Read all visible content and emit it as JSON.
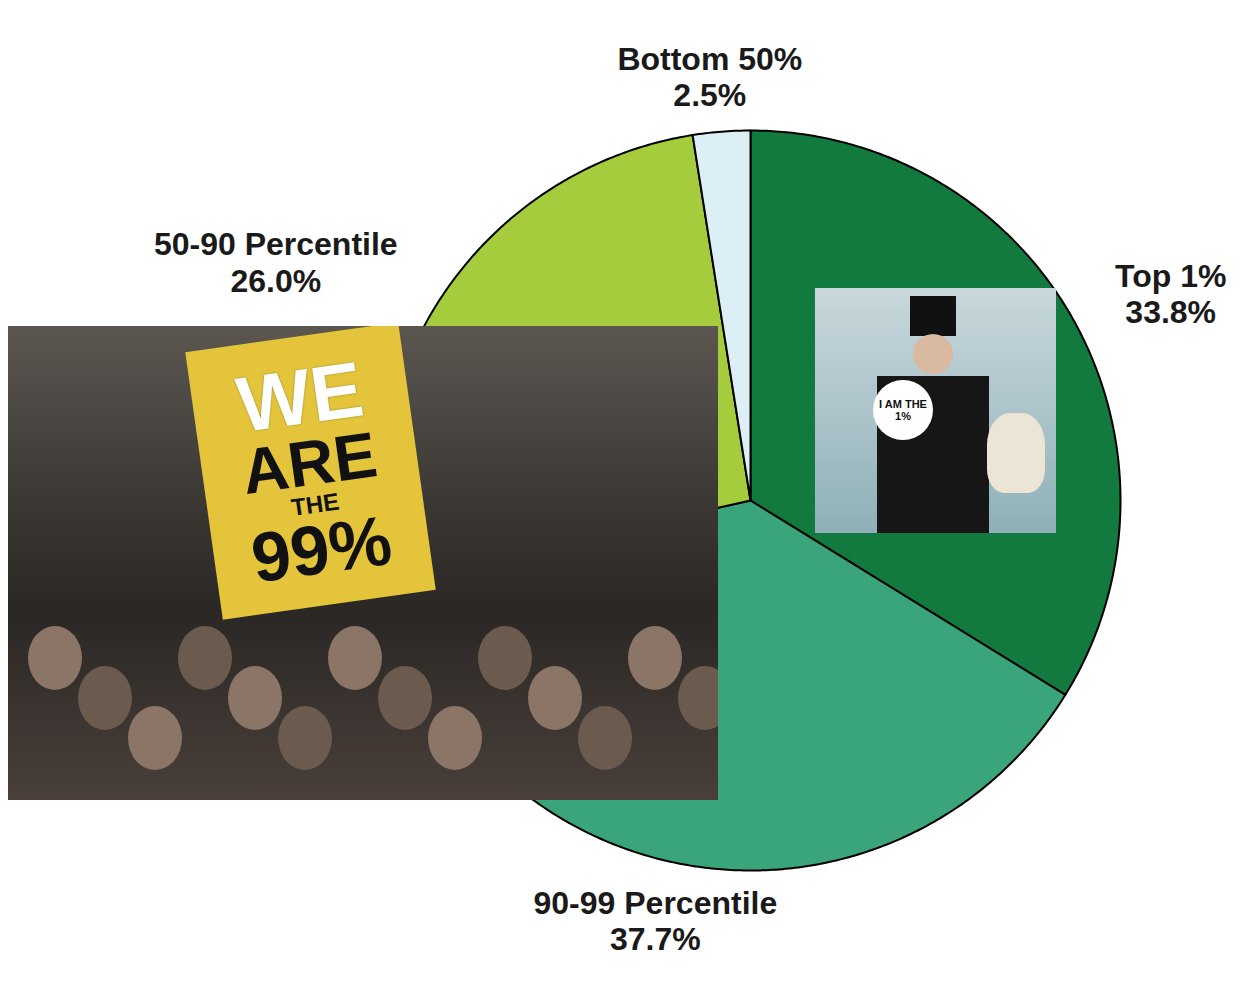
{
  "chart_data": {
    "type": "pie",
    "categories": [
      "Top 1%",
      "90-99 Percentile",
      "50-90 Percentile",
      "Bottom 50%"
    ],
    "values": [
      33.8,
      37.7,
      26.0,
      2.5
    ],
    "value_labels": [
      "33.8%",
      "37.7%",
      "26.0%",
      "2.5%"
    ],
    "colors": [
      "#137a3f",
      "#3aa57b",
      "#a5cc3c",
      "#dceff5"
    ],
    "data_labels": true,
    "annotations": [
      "WE ARE THE 99%",
      "I AM THE 1%"
    ]
  }
}
